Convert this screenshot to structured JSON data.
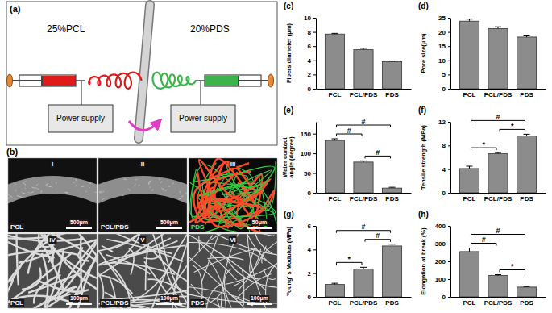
{
  "chart_data": [
    {
      "type": "bar",
      "panel_label": "(c)",
      "y_label": "Fibers diameter (μm)",
      "categories": [
        "PCL",
        "PCL/PDS",
        "PDS"
      ],
      "values": [
        7.7,
        5.5,
        3.8
      ],
      "errors": [
        0.1,
        0.2,
        0.1
      ],
      "color": "#8c8c8c",
      "ylim": [
        0,
        10
      ],
      "yticks": [
        0,
        2,
        4,
        6,
        8,
        10
      ]
    },
    {
      "type": "bar",
      "panel_label": "(d)",
      "y_label": "Pore size(μm)",
      "categories": [
        "PCL",
        "PCL/PDS",
        "PDS"
      ],
      "values": [
        23.8,
        21.2,
        18.2
      ],
      "errors": [
        0.7,
        0.6,
        0.4
      ],
      "color": "#8c8c8c",
      "ylim": [
        0,
        25
      ],
      "yticks": [
        0,
        5,
        10,
        15,
        20,
        25
      ]
    },
    {
      "type": "bar",
      "panel_label": "(e)",
      "y_label": "Water contact angle (degree)",
      "categories": [
        "PCL",
        "PCL/PDS",
        "PDS"
      ],
      "values": [
        133,
        78,
        12
      ],
      "errors": [
        4,
        3,
        2
      ],
      "color": "#8c8c8c",
      "ylim": [
        0,
        180
      ],
      "yticks": [
        0,
        50,
        100,
        150
      ],
      "annotations": [
        {
          "between": [
            "PCL",
            "PCL/PDS"
          ],
          "label": "#"
        },
        {
          "between": [
            "PCL",
            "PDS"
          ],
          "label": "#"
        },
        {
          "between": [
            "PCL/PDS",
            "PDS"
          ],
          "label": "#"
        }
      ]
    },
    {
      "type": "bar",
      "panel_label": "(f)",
      "y_label": "Tensile strength (MPa)",
      "categories": [
        "PCL",
        "PCL/PDS",
        "PDS"
      ],
      "values": [
        4.1,
        6.6,
        9.6
      ],
      "errors": [
        0.4,
        0.2,
        0.3
      ],
      "color": "#8c8c8c",
      "ylim": [
        0,
        12
      ],
      "yticks": [
        0,
        4,
        8,
        12
      ],
      "annotations": [
        {
          "between": [
            "PCL",
            "PCL/PDS"
          ],
          "label": "*"
        },
        {
          "between": [
            "PCL",
            "PDS"
          ],
          "label": "#"
        },
        {
          "between": [
            "PCL/PDS",
            "PDS"
          ],
          "label": "*"
        }
      ]
    },
    {
      "type": "bar",
      "panel_label": "(g)",
      "y_label": "Young' s Modulus (MPa)",
      "categories": [
        "PCL",
        "PCL/PDS",
        "PDS"
      ],
      "values": [
        1.05,
        2.35,
        4.3
      ],
      "errors": [
        0.1,
        0.15,
        0.15
      ],
      "color": "#8c8c8c",
      "ylim": [
        0,
        6
      ],
      "yticks": [
        0,
        2,
        4,
        6
      ],
      "annotations": [
        {
          "between": [
            "PCL",
            "PCL/PDS"
          ],
          "label": "*"
        },
        {
          "between": [
            "PCL",
            "PDS"
          ],
          "label": "#"
        },
        {
          "between": [
            "PCL/PDS",
            "PDS"
          ],
          "label": "#"
        }
      ]
    },
    {
      "type": "bar",
      "panel_label": "(h)",
      "y_label": "Elongation at break (%)",
      "categories": [
        "PCL",
        "PCL/PDS",
        "PDS"
      ],
      "values": [
        255,
        120,
        55
      ],
      "errors": [
        20,
        5,
        3
      ],
      "color": "#8c8c8c",
      "ylim": [
        0,
        400
      ],
      "yticks": [
        0,
        100,
        200,
        300,
        400
      ],
      "annotations": [
        {
          "between": [
            "PCL",
            "PCL/PDS"
          ],
          "label": "#"
        },
        {
          "between": [
            "PCL",
            "PDS"
          ],
          "label": "#"
        },
        {
          "between": [
            "PCL/PDS",
            "PDS"
          ],
          "label": "*"
        }
      ]
    }
  ],
  "diagram": {
    "panel_label": "(a)",
    "left_solution": "25%PCL",
    "right_solution": "20%PDS",
    "power_supplies": [
      "Power supply",
      "Power supply"
    ]
  },
  "images": {
    "panel_label": "(b)",
    "panels": [
      {
        "numeral": "I",
        "sample": "PCL",
        "scale_bar": "500μm"
      },
      {
        "numeral": "II",
        "sample": "PCL/PDS",
        "scale_bar": "500μm"
      },
      {
        "numeral": "III",
        "sample": "PDS",
        "scale_bar": "50μm"
      },
      {
        "numeral": "IV",
        "sample": "PCL",
        "scale_bar": "100μm"
      },
      {
        "numeral": "V",
        "sample": "PCL/PDS",
        "scale_bar": "100μm"
      },
      {
        "numeral": "VI",
        "sample": "PDS",
        "scale_bar": "100μm"
      }
    ]
  }
}
